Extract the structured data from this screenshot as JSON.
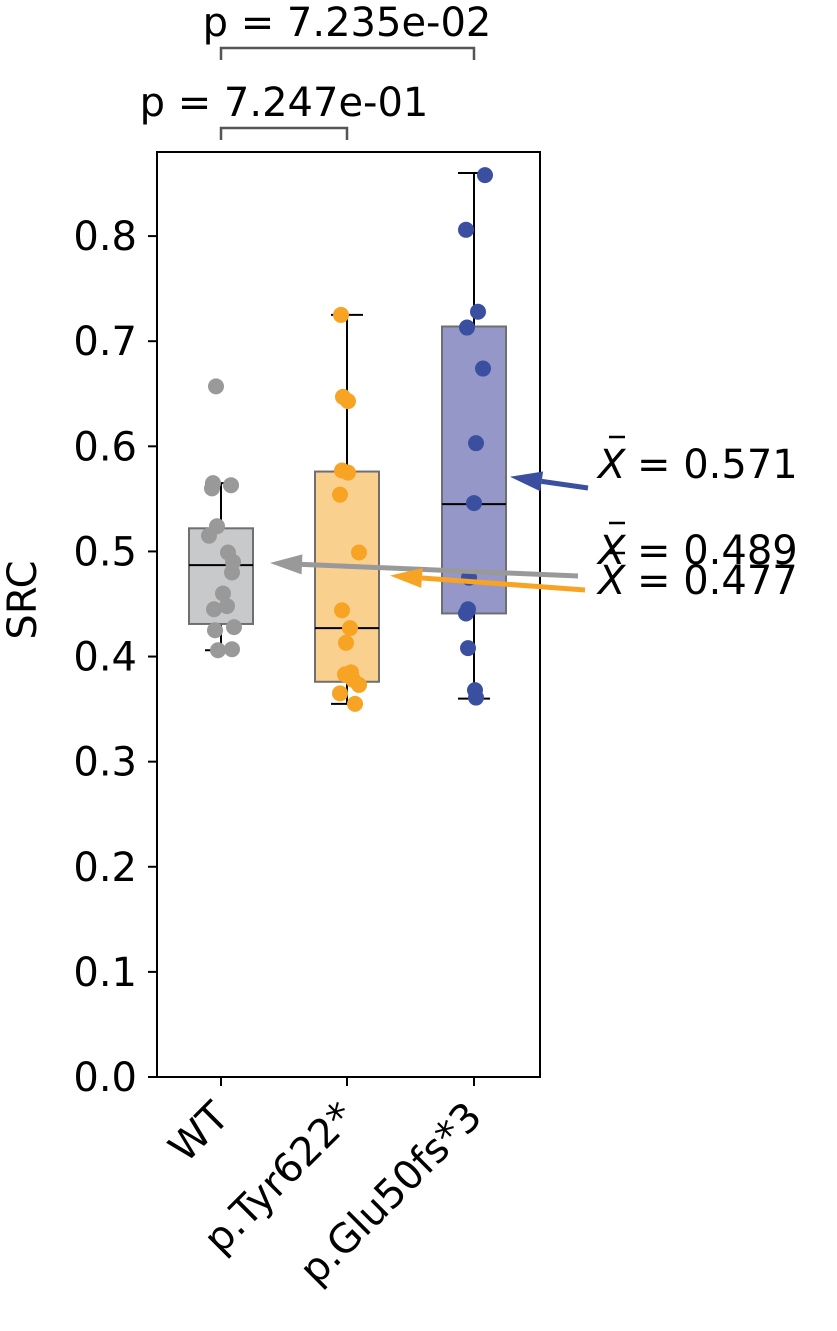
{
  "chart_data": {
    "type": "box",
    "title": "",
    "xlabel": "",
    "ylabel": "SRC",
    "ylim": [
      0.0,
      0.88
    ],
    "yticks": [
      0.0,
      0.1,
      0.2,
      0.3,
      0.4,
      0.5,
      0.6,
      0.7,
      0.8
    ],
    "ytick_labels": [
      "0.0",
      "0.1",
      "0.2",
      "0.3",
      "0.4",
      "0.5",
      "0.6",
      "0.7",
      "0.8"
    ],
    "grid": false,
    "categories": [
      "WT",
      "p.Tyr622*",
      "p.Glu50fs*3"
    ],
    "series": [
      {
        "category": "WT",
        "color": "#999999",
        "box_color": "#c8c9cb",
        "whisker_low": 0.406,
        "q1": 0.431,
        "median": 0.487,
        "q3": 0.522,
        "whisker_high": 0.565,
        "mean": 0.489,
        "points": [
          0.657,
          0.565,
          0.563,
          0.56,
          0.524,
          0.515,
          0.499,
          0.49,
          0.48,
          0.46,
          0.448,
          0.445,
          0.428,
          0.425,
          0.407,
          0.406
        ]
      },
      {
        "category": "p.Tyr622*",
        "color": "#f7a425",
        "box_color": "#fad08f",
        "whisker_low": 0.355,
        "q1": 0.376,
        "median": 0.427,
        "q3": 0.576,
        "whisker_high": 0.725,
        "mean": 0.477,
        "points": [
          0.725,
          0.647,
          0.643,
          0.577,
          0.575,
          0.554,
          0.499,
          0.444,
          0.427,
          0.413,
          0.385,
          0.383,
          0.378,
          0.373,
          0.365,
          0.355
        ]
      },
      {
        "category": "p.Glu50fs*3",
        "color": "#3a4fa0",
        "box_color": "#9597c8",
        "whisker_low": 0.36,
        "q1": 0.441,
        "median": 0.545,
        "q3": 0.714,
        "whisker_high": 0.86,
        "mean": 0.571,
        "points": [
          0.858,
          0.806,
          0.728,
          0.713,
          0.674,
          0.603,
          0.546,
          0.475,
          0.445,
          0.441,
          0.408,
          0.368,
          0.361
        ]
      }
    ],
    "comparisons": [
      {
        "from": "WT",
        "to": "p.Tyr622*",
        "label": "p = 7.247e-01"
      },
      {
        "from": "WT",
        "to": "p.Glu50fs*3",
        "label": "p = 7.235e-02"
      }
    ],
    "mean_labels": [
      {
        "category": "p.Glu50fs*3",
        "text": "= 0.571",
        "color": "#3a4fa0"
      },
      {
        "category": "WT",
        "text": "= 0.489",
        "color": "#999999"
      },
      {
        "category": "p.Tyr622*",
        "text": "= 0.477",
        "color": "#f7a425"
      }
    ]
  }
}
